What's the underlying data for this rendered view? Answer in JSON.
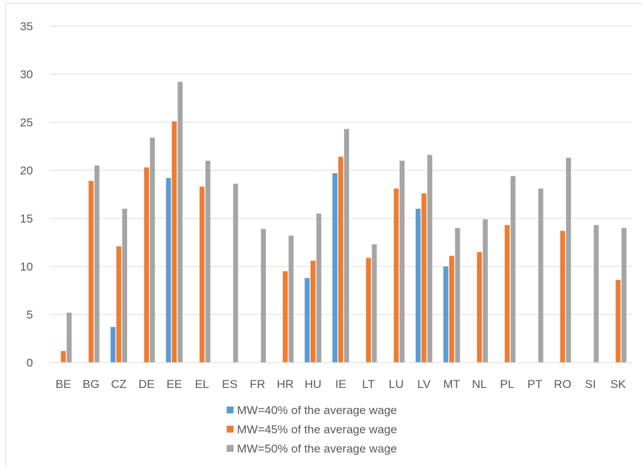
{
  "chart_data": {
    "type": "bar",
    "categories": [
      "BE",
      "BG",
      "CZ",
      "DE",
      "EE",
      "EL",
      "ES",
      "FR",
      "HR",
      "HU",
      "IE",
      "LT",
      "LU",
      "LV",
      "MT",
      "NL",
      "PL",
      "PT",
      "RO",
      "SI",
      "SK"
    ],
    "yticks": [
      "0",
      "5",
      "10",
      "15",
      "20",
      "25",
      "30",
      "35"
    ],
    "ylim": [
      0,
      35
    ],
    "grid": true,
    "legend_position": "bottom",
    "series": [
      {
        "name": "MW=40% of the average wage",
        "color": "#5b9bd5",
        "values": [
          0,
          0,
          3.7,
          0,
          19.2,
          0,
          0,
          0,
          0,
          8.8,
          19.7,
          0,
          0,
          16.0,
          10.0,
          0,
          0,
          0,
          0,
          0,
          0
        ]
      },
      {
        "name": "MW=45% of the average wage",
        "color": "#ed7d31",
        "values": [
          1.2,
          18.9,
          12.1,
          20.3,
          25.1,
          18.3,
          0,
          0,
          9.5,
          10.6,
          21.4,
          10.9,
          18.1,
          17.6,
          11.1,
          11.5,
          14.3,
          0,
          13.7,
          0,
          8.6
        ]
      },
      {
        "name": "MW=50% of the average wage",
        "color": "#a5a5a5",
        "values": [
          5.2,
          20.5,
          16.0,
          23.4,
          29.2,
          21.0,
          18.6,
          13.9,
          13.2,
          15.5,
          24.3,
          12.3,
          21.0,
          21.6,
          14.0,
          14.9,
          19.4,
          18.1,
          21.3,
          14.3,
          14.0
        ]
      }
    ]
  }
}
